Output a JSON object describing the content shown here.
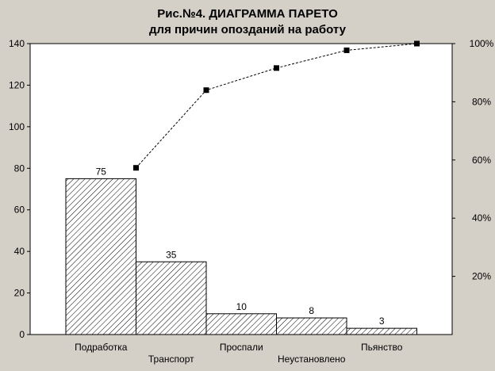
{
  "chart_data": {
    "type": "bar",
    "title_line1": "Рис.№4. ДИАГРАММА  ПАРЕТО",
    "title_line2": "для причин опозданий на работу",
    "categories": [
      "Подработка",
      "Транспорт",
      "Проспали",
      "Неустановлено",
      "Пьянство"
    ],
    "values": [
      75,
      35,
      10,
      8,
      3
    ],
    "cumulative_percent": [
      57.3,
      84.0,
      91.6,
      97.7,
      100.0
    ],
    "ylim": [
      0,
      140
    ],
    "yticks": [
      0,
      20,
      40,
      60,
      80,
      100,
      120,
      140
    ],
    "y2lim": [
      0,
      100
    ],
    "y2ticks": [
      "20%",
      "40%",
      "60%",
      "80%",
      "100%"
    ],
    "y2tick_values": [
      20,
      40,
      60,
      80,
      100
    ],
    "bar_fill": "hatched",
    "line_style": "dashed with square markers",
    "background": "#ffffff",
    "frame_color": "#d4d0c8",
    "grid": false
  }
}
